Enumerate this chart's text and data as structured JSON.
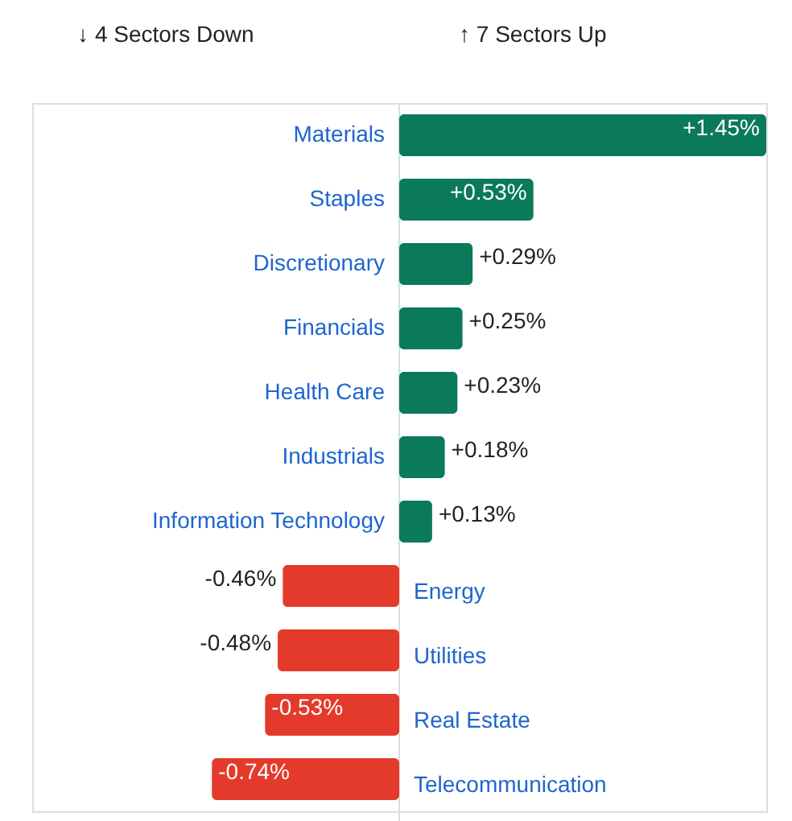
{
  "chart_data": {
    "type": "bar",
    "orientation": "horizontal",
    "annotations": [
      "↓ 4 Sectors Down",
      "↑ 7 Sectors Up"
    ],
    "categories": [
      "Materials",
      "Staples",
      "Discretionary",
      "Financials",
      "Health Care",
      "Industrials",
      "Information Technology",
      "Energy",
      "Utilities",
      "Real Estate",
      "Telecommunication"
    ],
    "values": [
      1.45,
      0.53,
      0.29,
      0.25,
      0.23,
      0.18,
      0.13,
      -0.46,
      -0.48,
      -0.53,
      -0.74
    ],
    "value_labels": [
      "+1.45%",
      "+0.53%",
      "+0.29%",
      "+0.25%",
      "+0.23%",
      "+0.18%",
      "+0.13%",
      "-0.46%",
      "-0.48%",
      "-0.53%",
      "-0.74%"
    ],
    "colors": [
      "#0b7a5a",
      "#0b7a5a",
      "#0b7a5a",
      "#0b7a5a",
      "#0b7a5a",
      "#0b7a5a",
      "#0b7a5a",
      "#e43a2b",
      "#e43a2b",
      "#e43a2b",
      "#e43a2b"
    ]
  }
}
